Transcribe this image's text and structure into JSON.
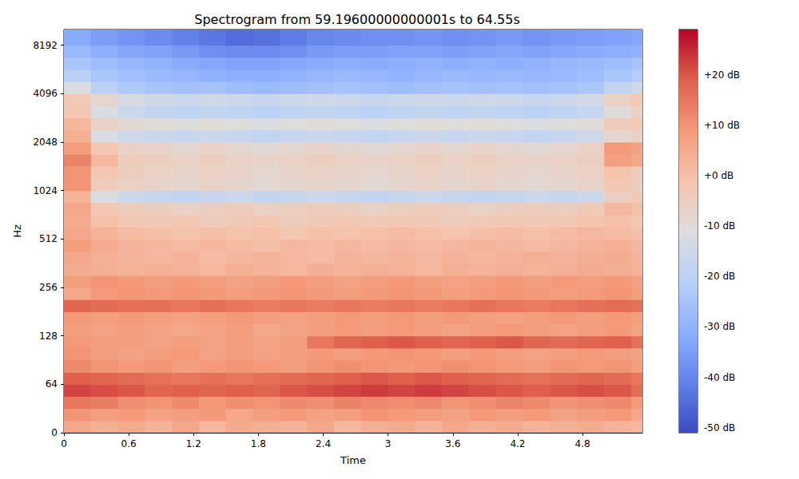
{
  "chart_data": {
    "type": "heatmap",
    "title": "Spectrogram from 59.19600000000001s to 64.55s",
    "x_label": "Time",
    "y_label": "Hz",
    "log": "y",
    "xlim": [
      0,
      5.354
    ],
    "xticks": [
      0,
      0.6,
      1.2,
      1.8,
      2.4,
      3,
      3.6,
      4.2,
      4.8
    ],
    "ylim": [
      0,
      10240
    ],
    "yticks": [
      0,
      64,
      128,
      256,
      512,
      1024,
      2048,
      4096,
      8192
    ],
    "x_edges": [
      0,
      0.25,
      0.5,
      0.75,
      1,
      1.25,
      1.5,
      1.75,
      2,
      2.25,
      2.5,
      2.75,
      3,
      3.25,
      3.5,
      3.75,
      4,
      4.25,
      4.5,
      4.75,
      5,
      5.25,
      5.354
    ],
    "y_edges": [
      0,
      16,
      32,
      48,
      64,
      76.1,
      90.5,
      107.6,
      128,
      152.2,
      181,
      215.3,
      256,
      304.4,
      362,
      430.5,
      512,
      608.9,
      724.1,
      861.1,
      1024,
      1217.7,
      1448.2,
      1722.2,
      2048,
      2435.5,
      2896.3,
      3444.3,
      4096,
      4871,
      5793,
      6889,
      8192,
      10240
    ],
    "cells": [
      [
        6,
        4,
        5,
        3,
        6,
        2,
        5,
        4,
        3,
        6,
        2,
        4,
        5,
        3,
        6,
        4,
        5,
        3,
        4,
        5,
        3,
        2
      ],
      [
        10,
        8,
        9,
        7,
        8,
        9,
        6,
        8,
        9,
        7,
        8,
        10,
        9,
        8,
        7,
        9,
        8,
        9,
        7,
        8,
        9,
        6
      ],
      [
        15,
        14,
        11,
        10,
        12,
        9,
        11,
        10,
        12,
        11,
        13,
        12,
        11,
        12,
        10,
        11,
        13,
        12,
        10,
        11,
        12,
        9
      ],
      [
        22,
        21,
        20,
        18,
        19,
        18,
        19,
        18,
        20,
        21,
        22,
        23,
        22,
        23,
        22,
        21,
        20,
        19,
        20,
        21,
        20,
        17
      ],
      [
        19,
        18,
        17,
        16,
        15,
        16,
        15,
        16,
        17,
        18,
        19,
        20,
        19,
        20,
        19,
        18,
        17,
        16,
        17,
        18,
        17,
        15
      ],
      [
        12,
        10,
        9,
        10,
        8,
        9,
        10,
        9,
        8,
        10,
        11,
        10,
        9,
        10,
        11,
        10,
        9,
        8,
        10,
        9,
        10,
        8
      ],
      [
        10,
        8,
        7,
        8,
        9,
        7,
        8,
        7,
        8,
        9,
        8,
        9,
        10,
        9,
        8,
        9,
        8,
        7,
        8,
        9,
        8,
        7
      ],
      [
        9,
        8,
        8,
        7,
        8,
        7,
        8,
        7,
        8,
        15,
        18,
        19,
        20,
        19,
        18,
        19,
        20,
        18,
        17,
        18,
        19,
        16
      ],
      [
        8,
        7,
        8,
        7,
        6,
        7,
        8,
        6,
        7,
        8,
        9,
        8,
        9,
        8,
        7,
        8,
        9,
        8,
        7,
        8,
        9,
        7
      ],
      [
        9,
        8,
        9,
        8,
        7,
        8,
        9,
        8,
        7,
        8,
        9,
        8,
        9,
        8,
        9,
        8,
        7,
        8,
        9,
        8,
        9,
        8
      ],
      [
        18,
        17,
        16,
        16,
        15,
        16,
        15,
        14,
        15,
        14,
        15,
        14,
        15,
        14,
        15,
        16,
        15,
        14,
        15,
        16,
        17,
        16
      ],
      [
        6,
        9,
        10,
        9,
        10,
        9,
        8,
        9,
        10,
        9,
        8,
        9,
        10,
        9,
        8,
        9,
        10,
        9,
        8,
        9,
        10,
        8
      ],
      [
        8,
        10,
        9,
        8,
        9,
        8,
        7,
        8,
        9,
        8,
        7,
        8,
        9,
        8,
        7,
        8,
        9,
        8,
        9,
        8,
        9,
        7
      ],
      [
        5,
        4,
        3,
        4,
        3,
        2,
        4,
        3,
        2,
        4,
        3,
        4,
        3,
        2,
        4,
        3,
        4,
        3,
        4,
        5,
        4,
        3
      ],
      [
        6,
        4,
        3,
        2,
        3,
        1,
        2,
        3,
        2,
        1,
        3,
        2,
        3,
        2,
        3,
        2,
        3,
        4,
        3,
        4,
        5,
        3
      ],
      [
        8,
        5,
        3,
        2,
        1,
        2,
        1,
        0,
        2,
        1,
        2,
        1,
        2,
        1,
        2,
        3,
        2,
        1,
        2,
        3,
        4,
        2
      ],
      [
        6,
        3,
        1,
        0,
        -1,
        0,
        -1,
        0,
        -2,
        0,
        -1,
        0,
        1,
        0,
        -1,
        0,
        1,
        0,
        1,
        2,
        1,
        0
      ],
      [
        5,
        0,
        -2,
        -3,
        -2,
        -4,
        -3,
        -2,
        -4,
        -3,
        -2,
        -3,
        -2,
        -3,
        -4,
        -3,
        -2,
        -3,
        -2,
        -1,
        0,
        -2
      ],
      [
        6,
        -2,
        -4,
        -5,
        -6,
        -5,
        -4,
        -6,
        -5,
        -4,
        -5,
        -6,
        -5,
        -4,
        -5,
        -6,
        -5,
        -4,
        -5,
        -3,
        2,
        0
      ],
      [
        3,
        -12,
        -16,
        -17,
        -18,
        -17,
        -16,
        -18,
        -17,
        -16,
        -17,
        -18,
        -17,
        -16,
        -17,
        -18,
        -17,
        -16,
        -17,
        -16,
        -5,
        -3
      ],
      [
        10,
        -4,
        -6,
        -7,
        -8,
        -7,
        -8,
        -9,
        -8,
        -7,
        -8,
        -9,
        -8,
        -7,
        -8,
        -7,
        -8,
        -9,
        -8,
        -7,
        -2,
        -5
      ],
      [
        10,
        -2,
        -5,
        -6,
        -7,
        -6,
        -7,
        -8,
        -7,
        -6,
        -7,
        -8,
        -7,
        -6,
        -7,
        -6,
        -7,
        -8,
        -7,
        -6,
        -1,
        -4
      ],
      [
        13,
        2,
        -4,
        -5,
        -6,
        -5,
        -6,
        -7,
        -6,
        -5,
        -6,
        -7,
        -6,
        -5,
        -6,
        -5,
        -6,
        -7,
        -6,
        -5,
        8,
        6
      ],
      [
        8,
        -2,
        -6,
        -7,
        -8,
        -7,
        -8,
        -9,
        -8,
        -7,
        -8,
        -9,
        -8,
        -7,
        -8,
        -7,
        -8,
        -9,
        -8,
        -6,
        9,
        7
      ],
      [
        4,
        -12,
        -15,
        -16,
        -17,
        -16,
        -17,
        -18,
        -17,
        -16,
        -17,
        -18,
        -17,
        -16,
        -17,
        -16,
        -17,
        -18,
        -17,
        -15,
        -8,
        -6
      ],
      [
        2,
        -6,
        -9,
        -10,
        -11,
        -10,
        -11,
        -12,
        -11,
        -10,
        -11,
        -12,
        -11,
        -10,
        -11,
        -10,
        -11,
        -12,
        -11,
        -10,
        -4,
        -3
      ],
      [
        -2,
        -12,
        -16,
        -18,
        -19,
        -18,
        -19,
        -20,
        -19,
        -18,
        -19,
        -20,
        -19,
        -18,
        -19,
        -18,
        -19,
        -20,
        -19,
        -17,
        -10,
        -6
      ],
      [
        -3,
        -8,
        -13,
        -15,
        -16,
        -15,
        -16,
        -17,
        -16,
        -15,
        -16,
        -17,
        -16,
        -15,
        -16,
        -15,
        -16,
        -17,
        -16,
        -14,
        -6,
        -3
      ],
      [
        -12,
        -20,
        -23,
        -25,
        -26,
        -25,
        -27,
        -28,
        -27,
        -26,
        -25,
        -26,
        -27,
        -26,
        -25,
        -26,
        -25,
        -26,
        -25,
        -24,
        -18,
        -15
      ],
      [
        -20,
        -24,
        -26,
        -28,
        -29,
        -30,
        -31,
        -31,
        -30,
        -29,
        -28,
        -29,
        -30,
        -29,
        -28,
        -29,
        -28,
        -29,
        -28,
        -27,
        -24,
        -22
      ],
      [
        -24,
        -27,
        -29,
        -30,
        -32,
        -33,
        -34,
        -34,
        -33,
        -32,
        -31,
        -32,
        -31,
        -30,
        -31,
        -30,
        -31,
        -30,
        -29,
        -28,
        -27,
        -25
      ],
      [
        -28,
        -31,
        -33,
        -34,
        -36,
        -38,
        -39,
        -39,
        -38,
        -36,
        -35,
        -35,
        -34,
        -34,
        -35,
        -34,
        -33,
        -34,
        -33,
        -32,
        -31,
        -30
      ],
      [
        -32,
        -35,
        -37,
        -39,
        -41,
        -43,
        -45,
        -44,
        -42,
        -40,
        -39,
        -38,
        -38,
        -37,
        -38,
        -37,
        -36,
        -37,
        -36,
        -35,
        -34,
        -33
      ]
    ],
    "colorbar": {
      "range": [
        -51,
        29
      ],
      "ticks": [
        {
          "value": -50,
          "label": "-50 dB"
        },
        {
          "value": -40,
          "label": "-40 dB"
        },
        {
          "value": -30,
          "label": "-30 dB"
        },
        {
          "value": -20,
          "label": "-20 dB"
        },
        {
          "value": -10,
          "label": "-10 dB"
        },
        {
          "value": 0,
          "label": "+0 dB"
        },
        {
          "value": 10,
          "label": "+10 dB"
        },
        {
          "value": 20,
          "label": "+20 dB"
        }
      ]
    }
  }
}
